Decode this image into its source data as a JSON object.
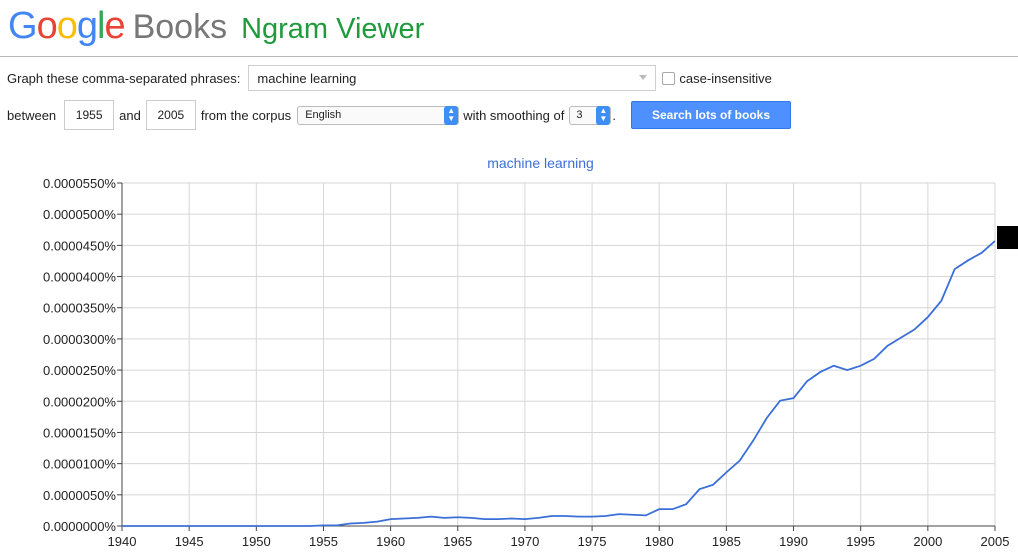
{
  "header": {
    "logo_google": "Google",
    "logo_books": "Books",
    "app_title": "Ngram Viewer"
  },
  "form": {
    "phrases_label": "Graph these comma-separated phrases:",
    "phrases_value": "machine learning",
    "case_insensitive_label": "case-insensitive",
    "between_label": "between",
    "start_year": "1955",
    "and_label": "and",
    "end_year": "2005",
    "corpus_label": "from the corpus",
    "corpus_value": "English",
    "smoothing_label": "with smoothing of",
    "smoothing_value": "3",
    "period": ".",
    "search_button": "Search lots of books"
  },
  "colors": {
    "line": "#3a6fd8",
    "grid": "#d6d6d6",
    "accent": "#4d90fe",
    "ngram_green": "#1f9a3c"
  },
  "chart_data": {
    "type": "line",
    "title": "",
    "series": [
      {
        "name": "machine learning",
        "x": [
          1940,
          1941,
          1942,
          1943,
          1944,
          1945,
          1946,
          1947,
          1948,
          1949,
          1950,
          1951,
          1952,
          1953,
          1954,
          1955,
          1956,
          1957,
          1958,
          1959,
          1960,
          1961,
          1962,
          1963,
          1964,
          1965,
          1966,
          1967,
          1968,
          1969,
          1970,
          1971,
          1972,
          1973,
          1974,
          1975,
          1976,
          1977,
          1978,
          1979,
          1980,
          1981,
          1982,
          1983,
          1984,
          1985,
          1986,
          1987,
          1988,
          1989,
          1990,
          1991,
          1992,
          1993,
          1994,
          1995,
          1996,
          1997,
          1998,
          1999,
          2000,
          2001,
          2002,
          2003,
          2004,
          2005
        ],
        "values": [
          0.0,
          0.0,
          0.0,
          0.0,
          0.0,
          0.0,
          0.0,
          0.0,
          0.0,
          0.0,
          0.0,
          0.0,
          0.0,
          0.0,
          0.0,
          1e-07,
          1e-07,
          4e-07,
          5e-07,
          7e-07,
          1.1e-06,
          1.2e-06,
          1.3e-06,
          1.5e-06,
          1.3e-06,
          1.4e-06,
          1.3e-06,
          1.1e-06,
          1.1e-06,
          1.2e-06,
          1.1e-06,
          1.3e-06,
          1.6e-06,
          1.6e-06,
          1.5e-06,
          1.5e-06,
          1.6e-06,
          1.9e-06,
          1.8e-06,
          1.7e-06,
          2.7e-06,
          2.7e-06,
          3.5e-06,
          5.9e-06,
          6.6e-06,
          8.6e-06,
          1.05e-05,
          1.37e-05,
          1.73e-05,
          2.01e-05,
          2.05e-05,
          2.32e-05,
          2.47e-05,
          2.57e-05,
          2.5e-05,
          2.57e-05,
          2.68e-05,
          2.89e-05,
          3.02e-05,
          3.15e-05,
          3.35e-05,
          3.61e-05,
          4.12e-05,
          4.26e-05,
          4.38e-05,
          4.57e-05
        ]
      }
    ],
    "xlim": [
      1940,
      2005
    ],
    "ylim": [
      0,
      5.5e-05
    ],
    "x_ticks": [
      "1940",
      "1945",
      "1950",
      "1955",
      "1960",
      "1965",
      "1970",
      "1975",
      "1980",
      "1985",
      "1990",
      "1995",
      "2000",
      "2005"
    ],
    "y_ticks": [
      "0.0000000%",
      "0.0000050%",
      "0.0000100%",
      "0.0000150%",
      "0.0000200%",
      "0.0000250%",
      "0.0000300%",
      "0.0000350%",
      "0.0000400%",
      "0.0000450%",
      "0.0000500%",
      "0.0000550%"
    ],
    "grid": true,
    "legend": "top-center"
  }
}
